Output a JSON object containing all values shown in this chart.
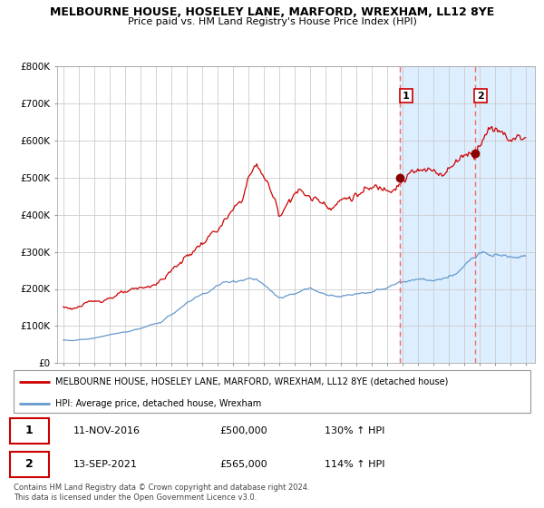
{
  "title_line1": "MELBOURNE HOUSE, HOSELEY LANE, MARFORD, WREXHAM, LL12 8YE",
  "title_line2": "Price paid vs. HM Land Registry's House Price Index (HPI)",
  "red_label": "MELBOURNE HOUSE, HOSELEY LANE, MARFORD, WREXHAM, LL12 8YE (detached house)",
  "blue_label": "HPI: Average price, detached house, Wrexham",
  "annotation1_date": "11-NOV-2016",
  "annotation1_price": "£500,000",
  "annotation1_hpi": "130% ↑ HPI",
  "annotation2_date": "13-SEP-2021",
  "annotation2_price": "£565,000",
  "annotation2_hpi": "114% ↑ HPI",
  "footer": "Contains HM Land Registry data © Crown copyright and database right 2024.\nThis data is licensed under the Open Government Licence v3.0.",
  "ylim": [
    0,
    800000
  ],
  "yticks": [
    0,
    100000,
    200000,
    300000,
    400000,
    500000,
    600000,
    700000,
    800000
  ],
  "ytick_labels": [
    "£0",
    "£100K",
    "£200K",
    "£300K",
    "£400K",
    "£500K",
    "£600K",
    "£700K",
    "£800K"
  ],
  "red_color": "#cc0000",
  "blue_color": "#6699cc",
  "marker_color": "#880000",
  "vline_color": "#ff6666",
  "shade_color": "#ddeeff",
  "grid_color": "#cccccc",
  "bg_color": "#ffffff",
  "box_border_color": "#cc0000",
  "year_start": 1995,
  "year_end": 2025,
  "sale1_year": 2016.87,
  "sale1_red_val": 500000,
  "sale2_year": 2021.71,
  "sale2_red_val": 565000,
  "red_keypoints": [
    [
      1995.0,
      152000
    ],
    [
      1995.5,
      148000
    ],
    [
      1996.5,
      158000
    ],
    [
      1997.5,
      172000
    ],
    [
      1998.5,
      185000
    ],
    [
      1999.5,
      192000
    ],
    [
      2000.5,
      205000
    ],
    [
      2001.5,
      228000
    ],
    [
      2002.5,
      268000
    ],
    [
      2003.5,
      305000
    ],
    [
      2004.5,
      340000
    ],
    [
      2005.5,
      380000
    ],
    [
      2006.5,
      430000
    ],
    [
      2007.0,
      500000
    ],
    [
      2007.5,
      530000
    ],
    [
      2008.0,
      510000
    ],
    [
      2008.5,
      460000
    ],
    [
      2009.0,
      400000
    ],
    [
      2009.5,
      430000
    ],
    [
      2010.0,
      470000
    ],
    [
      2010.5,
      460000
    ],
    [
      2011.0,
      445000
    ],
    [
      2011.5,
      440000
    ],
    [
      2012.0,
      435000
    ],
    [
      2012.5,
      430000
    ],
    [
      2013.0,
      440000
    ],
    [
      2013.5,
      445000
    ],
    [
      2014.0,
      455000
    ],
    [
      2014.5,
      460000
    ],
    [
      2015.0,
      465000
    ],
    [
      2015.5,
      470000
    ],
    [
      2016.0,
      475000
    ],
    [
      2016.87,
      500000
    ],
    [
      2017.5,
      510000
    ],
    [
      2018.0,
      515000
    ],
    [
      2018.5,
      510000
    ],
    [
      2019.0,
      515000
    ],
    [
      2019.5,
      520000
    ],
    [
      2020.0,
      525000
    ],
    [
      2020.5,
      540000
    ],
    [
      2021.0,
      570000
    ],
    [
      2021.71,
      565000
    ],
    [
      2022.0,
      600000
    ],
    [
      2022.5,
      630000
    ],
    [
      2023.0,
      640000
    ],
    [
      2023.5,
      625000
    ],
    [
      2024.0,
      615000
    ],
    [
      2024.5,
      610000
    ],
    [
      2025.0,
      615000
    ]
  ],
  "blue_keypoints": [
    [
      1995.0,
      62000
    ],
    [
      1995.5,
      61000
    ],
    [
      1996.5,
      65000
    ],
    [
      1997.5,
      72000
    ],
    [
      1998.5,
      80000
    ],
    [
      1999.5,
      88000
    ],
    [
      2000.5,
      98000
    ],
    [
      2001.5,
      115000
    ],
    [
      2002.5,
      145000
    ],
    [
      2003.5,
      175000
    ],
    [
      2004.5,
      195000
    ],
    [
      2005.0,
      210000
    ],
    [
      2006.0,
      220000
    ],
    [
      2007.0,
      228000
    ],
    [
      2007.5,
      225000
    ],
    [
      2008.0,
      210000
    ],
    [
      2008.5,
      190000
    ],
    [
      2009.0,
      175000
    ],
    [
      2009.5,
      178000
    ],
    [
      2010.0,
      185000
    ],
    [
      2010.5,
      195000
    ],
    [
      2011.0,
      200000
    ],
    [
      2011.5,
      192000
    ],
    [
      2012.0,
      185000
    ],
    [
      2012.5,
      183000
    ],
    [
      2013.0,
      182000
    ],
    [
      2013.5,
      184000
    ],
    [
      2014.0,
      187000
    ],
    [
      2014.5,
      190000
    ],
    [
      2015.0,
      193000
    ],
    [
      2015.5,
      196000
    ],
    [
      2016.0,
      200000
    ],
    [
      2016.87,
      218000
    ],
    [
      2017.0,
      220000
    ],
    [
      2017.5,
      222000
    ],
    [
      2018.0,
      224000
    ],
    [
      2018.5,
      222000
    ],
    [
      2019.0,
      223000
    ],
    [
      2019.5,
      225000
    ],
    [
      2020.0,
      228000
    ],
    [
      2020.5,
      240000
    ],
    [
      2021.0,
      262000
    ],
    [
      2021.5,
      278000
    ],
    [
      2021.71,
      280000
    ],
    [
      2022.0,
      295000
    ],
    [
      2022.5,
      305000
    ],
    [
      2023.0,
      300000
    ],
    [
      2023.5,
      295000
    ],
    [
      2024.0,
      292000
    ],
    [
      2024.5,
      290000
    ],
    [
      2025.0,
      292000
    ]
  ]
}
